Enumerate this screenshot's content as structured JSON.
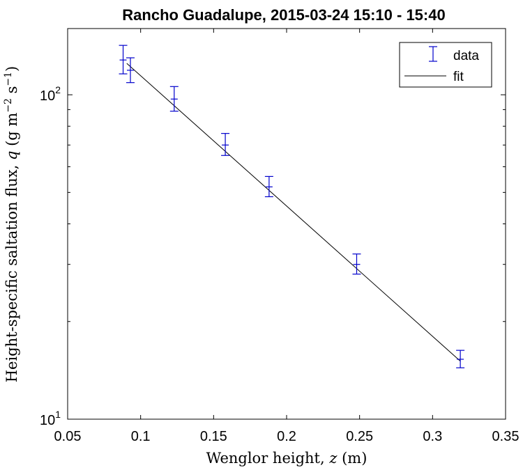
{
  "chart_data": {
    "type": "scatter",
    "title": "Rancho Guadalupe, 2015-03-24 15:10 - 15:40",
    "xlabel": "Wenglor height, ",
    "xlabel_var": "z",
    "xlabel_unit": " (m)",
    "ylabel": "Height-specific saltation flux, ",
    "ylabel_var": "q",
    "ylabel_unit_open": " (g m",
    "ylabel_exp1": "−2",
    "ylabel_mid": " s",
    "ylabel_exp2": "−1",
    "ylabel_close": ")",
    "xlim": [
      0.05,
      0.35
    ],
    "ylim": [
      10,
      160
    ],
    "yscale": "log",
    "xticks": [
      0.05,
      0.1,
      0.15,
      0.2,
      0.25,
      0.3,
      0.35
    ],
    "xtick_labels": [
      "0.05",
      "0.1",
      "0.15",
      "0.2",
      "0.25",
      "0.3",
      "0.35"
    ],
    "yticks": [
      10,
      100
    ],
    "ytick_labels": [
      {
        "base": "10",
        "exp": "1"
      },
      {
        "base": "10",
        "exp": "2"
      }
    ],
    "grid": false,
    "legend_position": "top-right",
    "series": [
      {
        "name": "data",
        "kind": "errorbar",
        "color": "#0000cc",
        "x": [
          0.088,
          0.093,
          0.123,
          0.158,
          0.188,
          0.248,
          0.319
        ],
        "y": [
          128,
          119,
          97,
          70,
          52,
          30,
          15.3
        ],
        "err_low": [
          12,
          10,
          8,
          5,
          3.5,
          2,
          0.9
        ],
        "err_high": [
          14,
          11,
          9,
          6,
          4,
          2.3,
          1.0
        ]
      },
      {
        "name": "fit",
        "kind": "line",
        "color": "#000000",
        "x": [
          0.0905,
          0.319
        ],
        "y": [
          125,
          15.1
        ]
      }
    ]
  }
}
